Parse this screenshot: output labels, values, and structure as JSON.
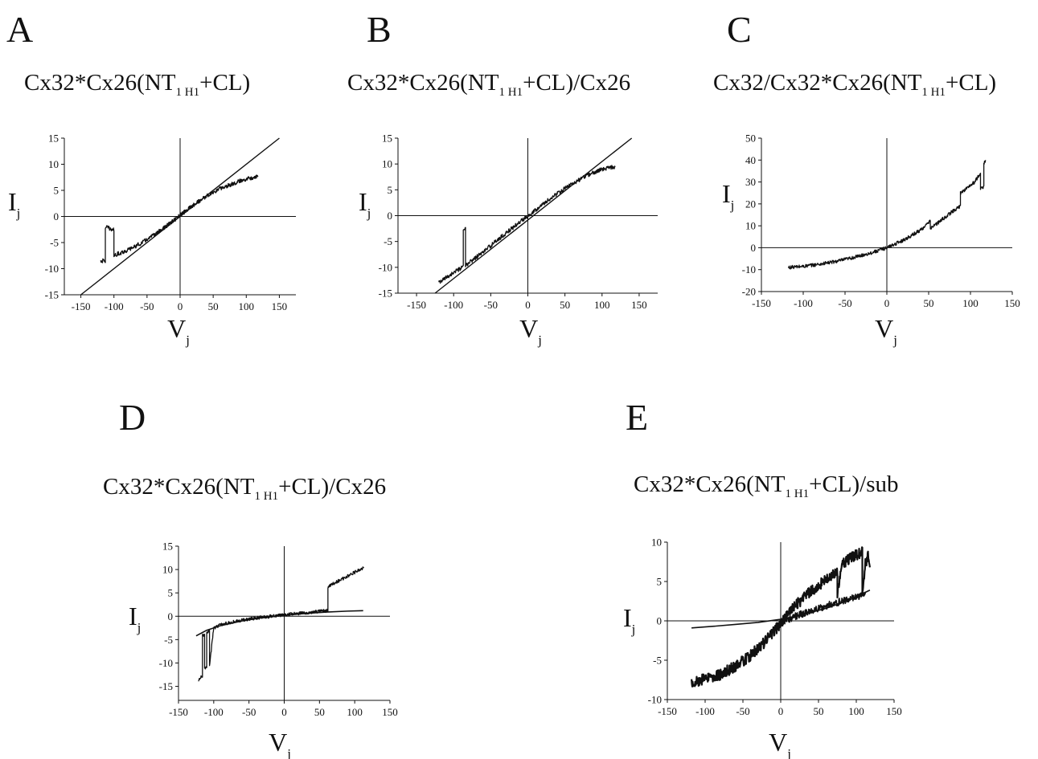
{
  "figure": {
    "panels": [
      {
        "letter": "A",
        "title": {
          "main": "Cx32*Cx26(NT",
          "sub": "1 H1",
          "rest": "+CL)"
        }
      },
      {
        "letter": "B",
        "title": {
          "main": "Cx32*Cx26(NT",
          "sub": "1 H1",
          "rest": "+CL)/Cx26"
        }
      },
      {
        "letter": "C",
        "title": {
          "main": "Cx32/Cx32*Cx26(NT",
          "sub": "1 H1",
          "rest": "+CL)"
        }
      },
      {
        "letter": "D",
        "title": {
          "main": "Cx32*Cx26(NT",
          "sub": "1 H1",
          "rest": "+CL)/Cx26"
        }
      },
      {
        "letter": "E",
        "title": {
          "main": "Cx32*Cx26(NT",
          "sub": "1 H1",
          "rest": "+CL)/sub"
        }
      }
    ]
  },
  "chart_data": [
    {
      "panel": "A",
      "type": "line",
      "xlabel": "V",
      "xlabel_sub": "j",
      "ylabel": "I",
      "ylabel_sub": "j",
      "xlim": [
        -175,
        175
      ],
      "ylim": [
        -15,
        15
      ],
      "xticks": [
        -150,
        -100,
        -50,
        0,
        50,
        100,
        150
      ],
      "yticks": [
        -15,
        -10,
        -5,
        0,
        5,
        10,
        15
      ],
      "grid": false,
      "series": [
        {
          "style": "linear-fit",
          "x": [
            -150,
            150
          ],
          "y": [
            -15,
            15
          ]
        },
        {
          "style": "noisy-trace",
          "noise": 0.4,
          "x": [
            -120,
            -113,
            -113,
            -110,
            -105,
            -100,
            -100,
            -95,
            -80,
            -60,
            -40,
            -20,
            0,
            20,
            40,
            60,
            80,
            100,
            118
          ],
          "y": [
            -8.5,
            -8.5,
            -2.5,
            -2,
            -2.5,
            -2.5,
            -7.5,
            -7.2,
            -6.5,
            -5.2,
            -3.6,
            -1.8,
            0.2,
            2.2,
            3.9,
            5.3,
            6.3,
            7.2,
            7.7
          ]
        }
      ]
    },
    {
      "panel": "B",
      "type": "line",
      "xlabel": "V",
      "xlabel_sub": "j",
      "ylabel": "I",
      "ylabel_sub": "j",
      "xlim": [
        -175,
        175
      ],
      "ylim": [
        -15,
        15
      ],
      "xticks": [
        -150,
        -100,
        -50,
        0,
        50,
        100,
        150
      ],
      "yticks": [
        -15,
        -10,
        -5,
        0,
        5,
        10,
        15
      ],
      "grid": false,
      "series": [
        {
          "style": "linear-fit",
          "x": [
            -125,
            140
          ],
          "y": [
            -15,
            15
          ]
        },
        {
          "style": "noisy-trace",
          "noise": 0.4,
          "x": [
            -120,
            -110,
            -100,
            -90,
            -87,
            -87,
            -84,
            -84,
            -80,
            -60,
            -40,
            -20,
            0,
            20,
            40,
            60,
            80,
            100,
            118
          ],
          "y": [
            -13,
            -12,
            -11,
            -10.2,
            -10,
            -3,
            -2.5,
            -9.8,
            -9.2,
            -7,
            -4.6,
            -2.3,
            0,
            2.2,
            4.3,
            6.2,
            7.8,
            9,
            9.5
          ]
        }
      ]
    },
    {
      "panel": "C",
      "type": "line",
      "xlabel": "V",
      "xlabel_sub": "j",
      "ylabel": "I",
      "ylabel_sub": "j",
      "xlim": [
        -150,
        150
      ],
      "ylim": [
        -20,
        50
      ],
      "xticks": [
        -150,
        -100,
        -50,
        0,
        50,
        100,
        150
      ],
      "yticks": [
        -20,
        -10,
        0,
        10,
        20,
        30,
        40,
        50
      ],
      "grid": false,
      "series": [
        {
          "style": "noisy-trace",
          "noise": 0.8,
          "x": [
            -118,
            -100,
            -80,
            -60,
            -40,
            -20,
            0,
            20,
            40,
            52,
            52,
            60,
            70,
            80,
            88,
            88,
            95,
            105,
            112,
            112,
            116,
            116,
            118
          ],
          "y": [
            -9,
            -8.5,
            -7.5,
            -6.2,
            -4.5,
            -2.5,
            0,
            3.5,
            8,
            12,
            9,
            11,
            14,
            17,
            19,
            25,
            27,
            30,
            34,
            27,
            28,
            38,
            40
          ]
        }
      ]
    },
    {
      "panel": "D",
      "type": "line",
      "xlabel": "V",
      "xlabel_sub": "j",
      "ylabel": "I",
      "ylabel_sub": "j",
      "xlim": [
        -150,
        150
      ],
      "ylim": [
        -18,
        15
      ],
      "xticks": [
        -150,
        -100,
        -50,
        0,
        50,
        100,
        150
      ],
      "yticks": [
        -15,
        -10,
        -5,
        0,
        5,
        10,
        15
      ],
      "grid": false,
      "series": [
        {
          "style": "fit-curve",
          "x": [
            -125,
            -110,
            -90,
            -60,
            -30,
            0,
            30,
            60,
            90,
            112
          ],
          "y": [
            -4.2,
            -3,
            -2,
            -1,
            -0.3,
            0.2,
            0.6,
            0.9,
            1.1,
            1.2
          ]
        },
        {
          "style": "noisy-trace",
          "noise": 0.35,
          "x": [
            -122,
            -118,
            -116,
            -116,
            -113,
            -113,
            -110,
            -110,
            -106,
            -106,
            -100,
            -90,
            -70,
            -50,
            -30,
            -10,
            0,
            20,
            40,
            62,
            62,
            70,
            80,
            90,
            100,
            110,
            113
          ],
          "y": [
            -14,
            -13,
            -13,
            -4,
            -4,
            -11,
            -11,
            -3.5,
            -3,
            -10.5,
            -2.5,
            -1.8,
            -1.1,
            -0.6,
            -0.2,
            0.1,
            0.3,
            0.6,
            0.9,
            1.2,
            6.2,
            7,
            7.8,
            8.6,
            9.4,
            10.2,
            10.5
          ]
        }
      ]
    },
    {
      "panel": "E",
      "type": "line",
      "xlabel": "V",
      "xlabel_sub": "j",
      "ylabel": "I",
      "ylabel_sub": "j",
      "xlim": [
        -150,
        150
      ],
      "ylim": [
        -10,
        10
      ],
      "xticks": [
        -150,
        -100,
        -50,
        0,
        50,
        100,
        150
      ],
      "yticks": [
        -10,
        -5,
        0,
        5,
        10
      ],
      "grid": false,
      "series": [
        {
          "style": "fit-curve",
          "x": [
            -118,
            -90,
            -60,
            -30,
            0,
            30,
            60,
            90,
            118
          ],
          "y": [
            -0.9,
            -0.7,
            -0.45,
            -0.2,
            0.2,
            0.8,
            1.6,
            2.6,
            3.9
          ]
        },
        {
          "style": "noisy-trace",
          "noise": 0.7,
          "width": 2.2,
          "x": [
            -118,
            -100,
            -80,
            -60,
            -40,
            -20,
            0,
            20,
            40,
            60,
            72,
            75,
            75,
            80,
            90,
            100,
            108,
            108,
            112,
            116,
            118
          ],
          "y": [
            -7.8,
            -7.4,
            -6.8,
            -5.8,
            -4.4,
            -2.6,
            -0.3,
            2,
            3.8,
            5.2,
            6,
            6.2,
            3.2,
            7.2,
            7.8,
            8.4,
            8.8,
            4,
            7.2,
            8.6,
            6.8
          ]
        },
        {
          "style": "noisy-trace",
          "noise": 0.45,
          "width": 1.6,
          "x": [
            0,
            20,
            40,
            60,
            80,
            100,
            112
          ],
          "y": [
            -0.2,
            0.6,
            1.3,
            1.9,
            2.5,
            3,
            3.4
          ]
        }
      ]
    }
  ]
}
